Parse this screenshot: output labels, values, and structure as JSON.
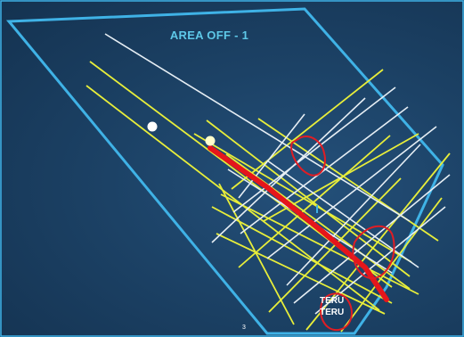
{
  "map": {
    "title": "AREA OFF - 1",
    "labels": {
      "teru_1": "TERU",
      "teru_2": "TERU"
    },
    "page_number": "3",
    "colors": {
      "background": "#1c4266",
      "boundary": "#3fb2e6",
      "yellow_lines": "#e8ee3a",
      "white_lines": "#e6eef4",
      "red_line": "#e5161b",
      "red_circles": "#e01d24",
      "points": "#ffffff"
    }
  }
}
